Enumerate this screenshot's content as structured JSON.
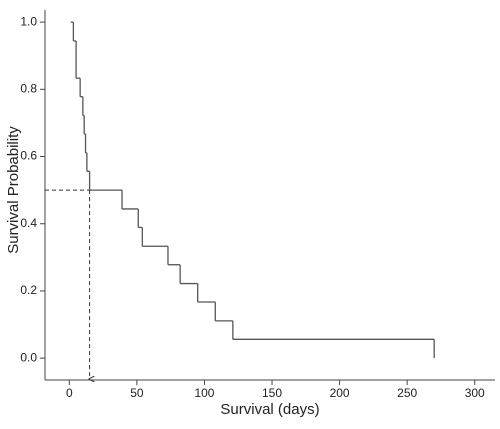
{
  "chart_data": {
    "type": "step",
    "x_label": "Survival (days)",
    "y_label": "Survival Probability",
    "x": [
      1,
      3,
      5,
      8,
      10,
      11,
      12,
      13,
      15,
      39,
      51,
      54,
      73,
      82,
      95,
      108,
      121,
      270
    ],
    "values": [
      1,
      0.944,
      0.833,
      0.778,
      0.722,
      0.667,
      0.611,
      0.556,
      0.5,
      0.444,
      0.389,
      0.333,
      0.278,
      0.222,
      0.167,
      0.111,
      0.056,
      0
    ],
    "color": "#555555",
    "median": {
      "x": 15,
      "y": 0.5
    },
    "xlim": [
      -18,
      315
    ],
    "ylim": [
      -0.065,
      1.036
    ],
    "xticks": [
      0,
      50,
      100,
      150,
      200,
      250,
      300
    ],
    "yticks": [
      {
        "value": 0,
        "label": "0.0"
      },
      0.2,
      0.4,
      0.6,
      0.8,
      {
        "value": 1,
        "label": "1.0"
      }
    ]
  }
}
